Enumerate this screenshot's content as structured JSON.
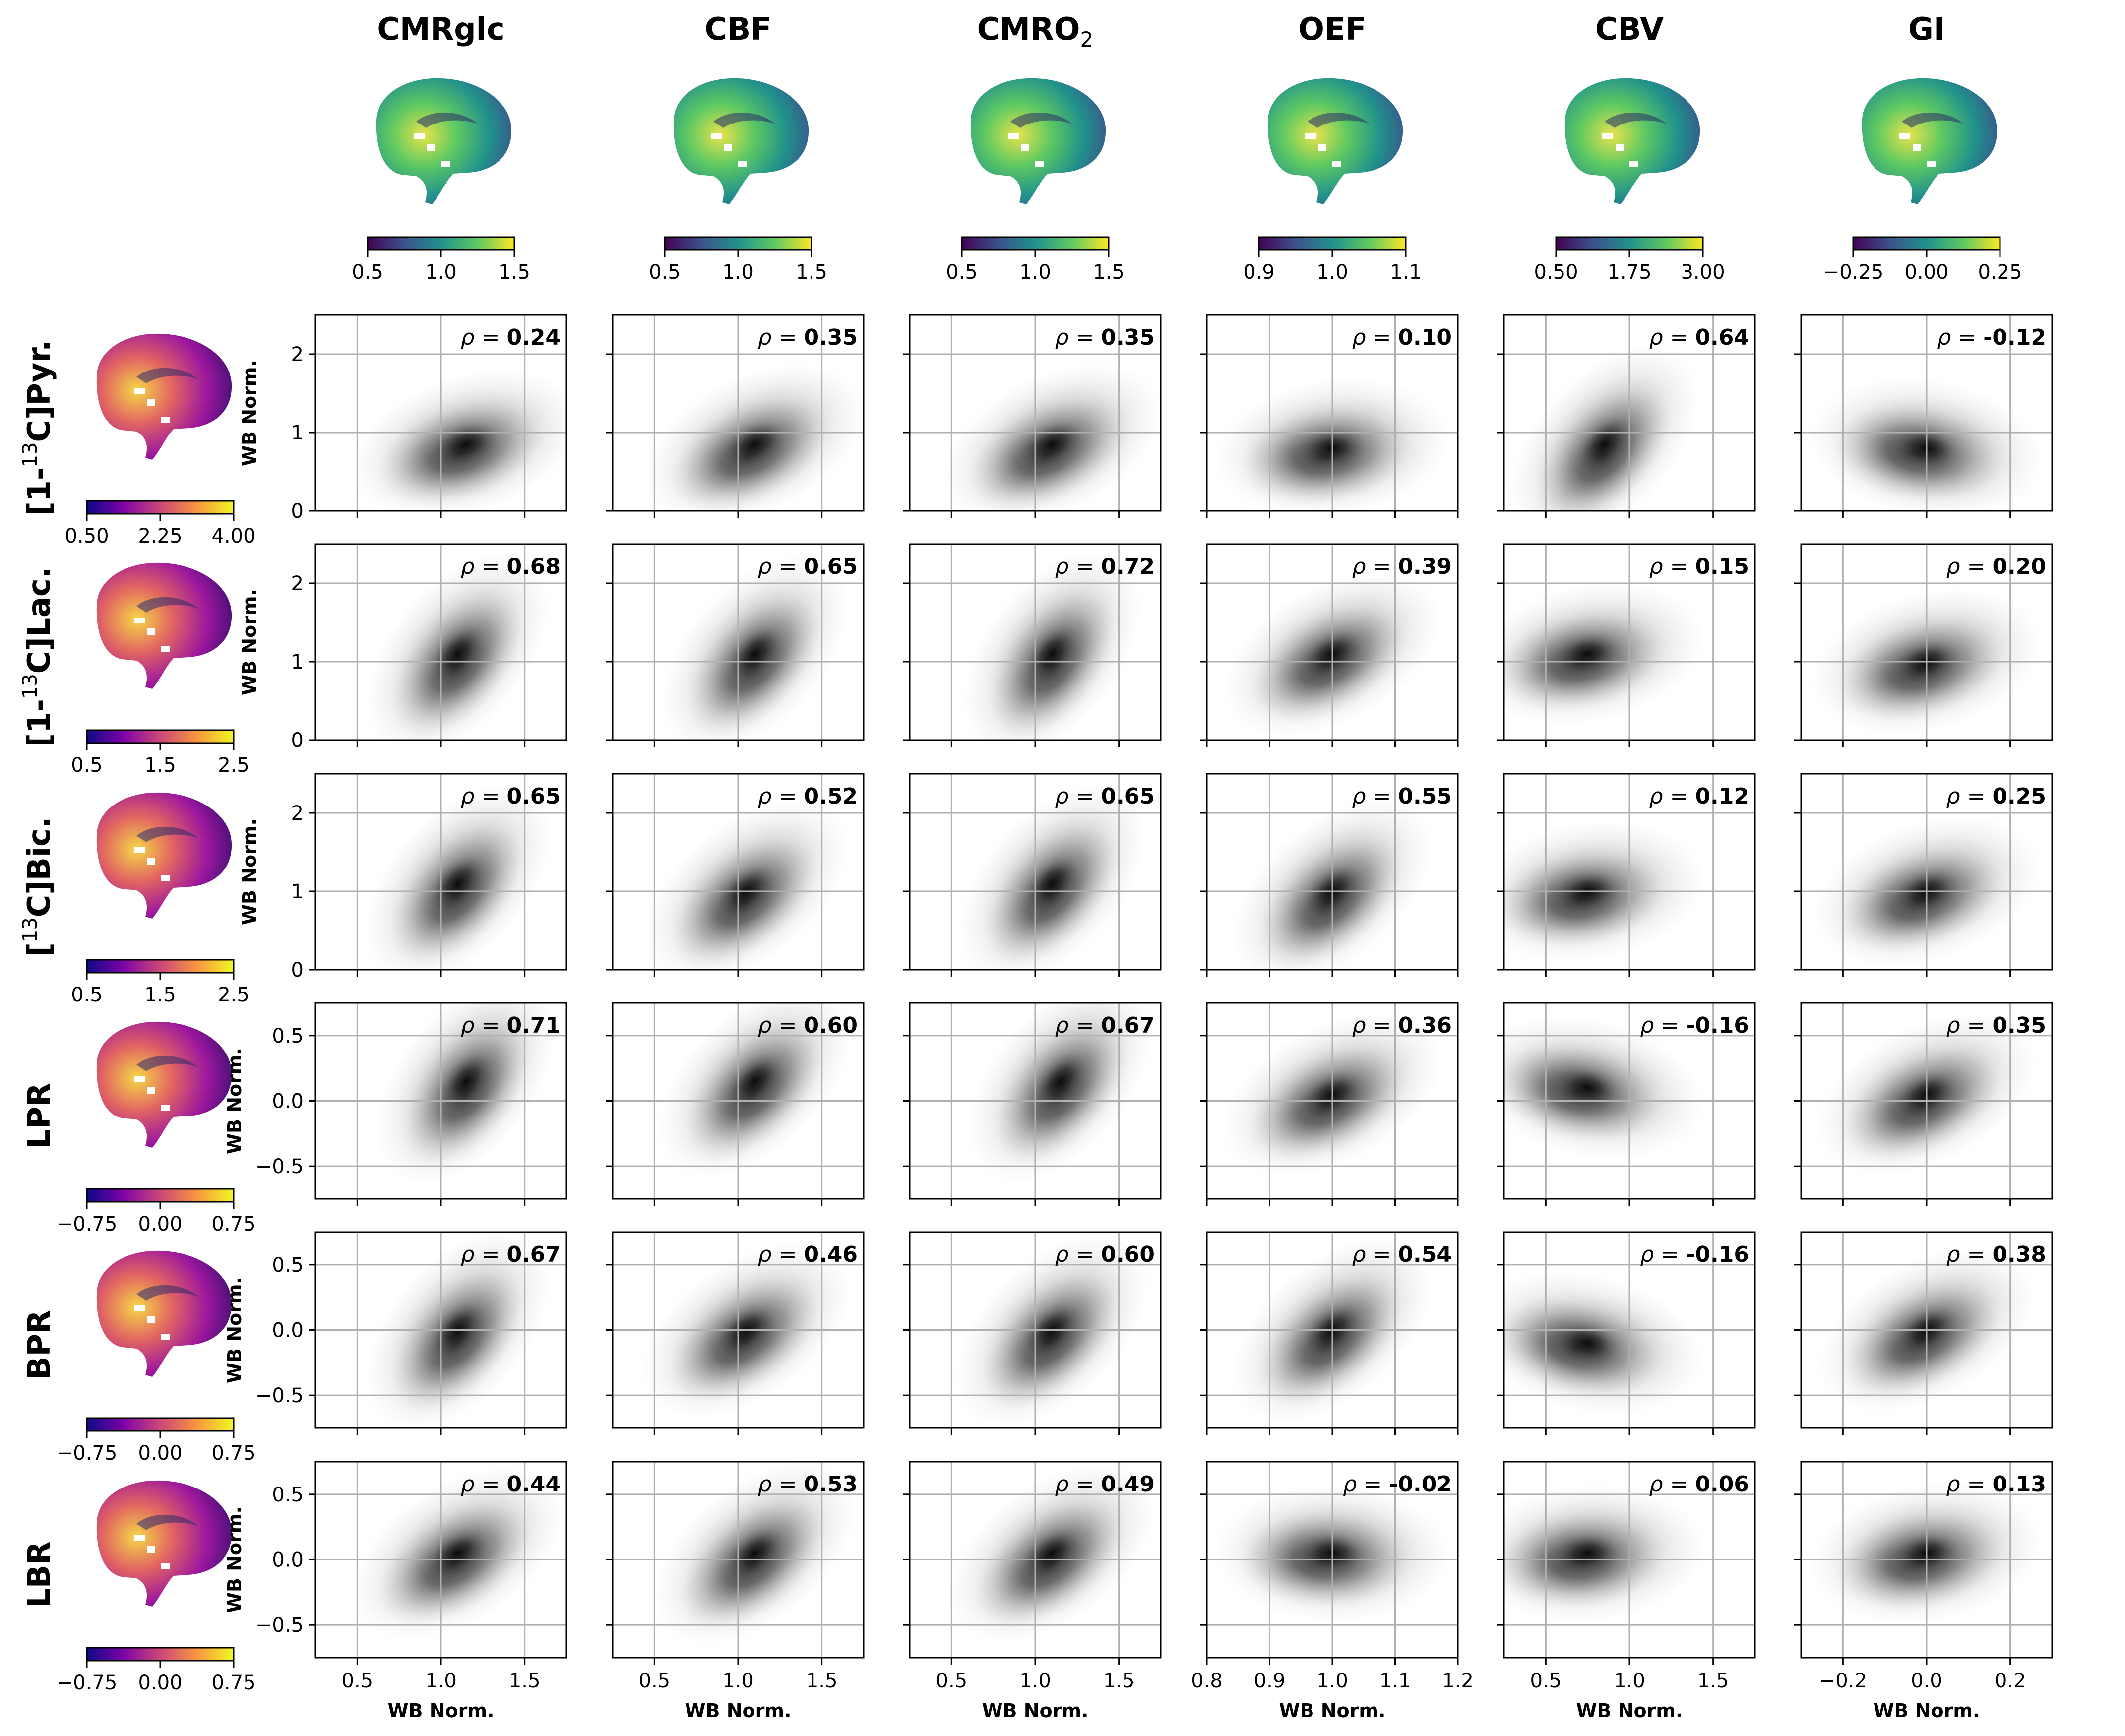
{
  "columns": [
    {
      "name": "CMRglc",
      "sub": "",
      "colorbar": {
        "ticks": [
          "0.5",
          "1.0",
          "1.5"
        ],
        "cmap": "viridis"
      }
    },
    {
      "name": "CBF",
      "sub": "",
      "colorbar": {
        "ticks": [
          "0.5",
          "1.0",
          "1.5"
        ],
        "cmap": "viridis"
      }
    },
    {
      "name": "CMRO",
      "sub": "2",
      "colorbar": {
        "ticks": [
          "0.5",
          "1.0",
          "1.5"
        ],
        "cmap": "viridis"
      }
    },
    {
      "name": "OEF",
      "sub": "",
      "colorbar": {
        "ticks": [
          "0.9",
          "1.0",
          "1.1"
        ],
        "cmap": "viridis"
      }
    },
    {
      "name": "CBV",
      "sub": "",
      "colorbar": {
        "ticks": [
          "0.50",
          "1.75",
          "3.00"
        ],
        "cmap": "viridis"
      }
    },
    {
      "name": "GI",
      "sub": "",
      "colorbar": {
        "ticks": [
          "−0.25",
          "0.00",
          "0.25"
        ],
        "cmap": "viridis"
      }
    }
  ],
  "rows": [
    {
      "pre": "[1-",
      "sup": "13",
      "post": "C]Pyr.",
      "colorbar": {
        "ticks": [
          "0.50",
          "2.25",
          "4.00"
        ],
        "cmap": "plasma"
      },
      "ylabel": "WB Norm.",
      "ylim": [
        0,
        2.5
      ],
      "yticks": [
        "0",
        "1",
        "2"
      ],
      "ytick_values": [
        0,
        1,
        2
      ]
    },
    {
      "pre": "[1-",
      "sup": "13",
      "post": "C]Lac.",
      "colorbar": {
        "ticks": [
          "0.5",
          "1.5",
          "2.5"
        ],
        "cmap": "plasma"
      },
      "ylabel": "WB Norm.",
      "ylim": [
        0,
        2.5
      ],
      "yticks": [
        "0",
        "1",
        "2"
      ],
      "ytick_values": [
        0,
        1,
        2
      ]
    },
    {
      "pre": "[",
      "sup": "13",
      "post": "C]Bic.",
      "colorbar": {
        "ticks": [
          "0.5",
          "1.5",
          "2.5"
        ],
        "cmap": "plasma"
      },
      "ylabel": "WB Norm.",
      "ylim": [
        0,
        2.5
      ],
      "yticks": [
        "0",
        "1",
        "2"
      ],
      "ytick_values": [
        0,
        1,
        2
      ]
    },
    {
      "pre": "LPR",
      "sup": "",
      "post": "",
      "colorbar": {
        "ticks": [
          "−0.75",
          "0.00",
          "0.75"
        ],
        "cmap": "plasma"
      },
      "ylabel": "WB Norm.",
      "ylim": [
        -0.75,
        0.75
      ],
      "yticks": [
        "0.5",
        "0.0",
        "−0.5"
      ],
      "ytick_values": [
        0.5,
        0,
        -0.5
      ]
    },
    {
      "pre": "BPR",
      "sup": "",
      "post": "",
      "colorbar": {
        "ticks": [
          "−0.75",
          "0.00",
          "0.75"
        ],
        "cmap": "plasma"
      },
      "ylabel": "WB Norm.",
      "ylim": [
        -0.75,
        0.75
      ],
      "yticks": [
        "0.5",
        "0.0",
        "−0.5"
      ],
      "ytick_values": [
        0.5,
        0,
        -0.5
      ]
    },
    {
      "pre": "LBR",
      "sup": "",
      "post": "",
      "colorbar": {
        "ticks": [
          "−0.75",
          "0.00",
          "0.75"
        ],
        "cmap": "plasma"
      },
      "ylabel": "WB Norm.",
      "ylim": [
        -0.75,
        0.75
      ],
      "yticks": [
        "0.5",
        "0.0",
        "−0.5"
      ],
      "ytick_values": [
        0.5,
        0,
        -0.5
      ]
    }
  ],
  "x_axis": {
    "label": "WB Norm.",
    "cols": [
      {
        "ticks": [
          "0.5",
          "1.0",
          "1.5"
        ],
        "values": [
          0.5,
          1.0,
          1.5
        ],
        "xlim": [
          0.25,
          1.75
        ]
      },
      {
        "ticks": [
          "0.5",
          "1.0",
          "1.5"
        ],
        "values": [
          0.5,
          1.0,
          1.5
        ],
        "xlim": [
          0.25,
          1.75
        ]
      },
      {
        "ticks": [
          "0.5",
          "1.0",
          "1.5"
        ],
        "values": [
          0.5,
          1.0,
          1.5
        ],
        "xlim": [
          0.25,
          1.75
        ]
      },
      {
        "ticks": [
          "0.8",
          "0.9",
          "1.0",
          "1.1",
          "1.2"
        ],
        "values": [
          0.8,
          0.9,
          1.0,
          1.1,
          1.2
        ],
        "xlim": [
          0.8,
          1.2
        ]
      },
      {
        "ticks": [
          "0.5",
          "1.0",
          "1.5"
        ],
        "values": [
          0.5,
          1.0,
          1.5
        ],
        "xlim": [
          0.25,
          1.75
        ]
      },
      {
        "ticks": [
          "−0.2",
          "0.0",
          "0.2"
        ],
        "values": [
          -0.2,
          0.0,
          0.2
        ],
        "xlim": [
          -0.3,
          0.3
        ]
      }
    ]
  },
  "chart_data": {
    "type": "heatmap",
    "description_kind": "grid of 2D density plots",
    "rho_prefix": "ρ = ",
    "correlations": [
      [
        "0.24",
        "0.35",
        "0.35",
        "0.10",
        "0.64",
        "-0.12"
      ],
      [
        "0.68",
        "0.65",
        "0.72",
        "0.39",
        "0.15",
        "0.20"
      ],
      [
        "0.65",
        "0.52",
        "0.65",
        "0.55",
        "0.12",
        "0.25"
      ],
      [
        "0.71",
        "0.60",
        "0.67",
        "0.36",
        "-0.16",
        "0.35"
      ],
      [
        "0.67",
        "0.46",
        "0.60",
        "0.54",
        "-0.16",
        "0.38"
      ],
      [
        "0.44",
        "0.53",
        "0.49",
        "-0.02",
        "0.06",
        "0.13"
      ]
    ],
    "density_centers": [
      [
        [
          1.15,
          0.85
        ],
        [
          1.1,
          0.85
        ],
        [
          1.1,
          0.85
        ],
        [
          1.0,
          0.8
        ],
        [
          0.85,
          0.85
        ],
        [
          0.0,
          0.8
        ]
      ],
      [
        [
          1.1,
          1.1
        ],
        [
          1.1,
          1.1
        ],
        [
          1.1,
          1.1
        ],
        [
          1.0,
          1.1
        ],
        [
          0.75,
          1.1
        ],
        [
          0.0,
          1.0
        ]
      ],
      [
        [
          1.1,
          1.1
        ],
        [
          1.05,
          1.0
        ],
        [
          1.1,
          1.1
        ],
        [
          1.0,
          1.0
        ],
        [
          0.75,
          1.0
        ],
        [
          0.0,
          1.0
        ]
      ],
      [
        [
          1.15,
          0.15
        ],
        [
          1.1,
          0.15
        ],
        [
          1.15,
          0.15
        ],
        [
          1.0,
          0.05
        ],
        [
          0.75,
          0.1
        ],
        [
          0.0,
          0.05
        ]
      ],
      [
        [
          1.1,
          0.0
        ],
        [
          1.05,
          0.0
        ],
        [
          1.1,
          0.0
        ],
        [
          1.0,
          0.0
        ],
        [
          0.75,
          -0.1
        ],
        [
          0.0,
          0.0
        ]
      ],
      [
        [
          1.1,
          0.05
        ],
        [
          1.1,
          0.05
        ],
        [
          1.1,
          0.05
        ],
        [
          1.0,
          0.05
        ],
        [
          0.75,
          0.05
        ],
        [
          0.0,
          0.05
        ]
      ]
    ],
    "grid": true
  }
}
